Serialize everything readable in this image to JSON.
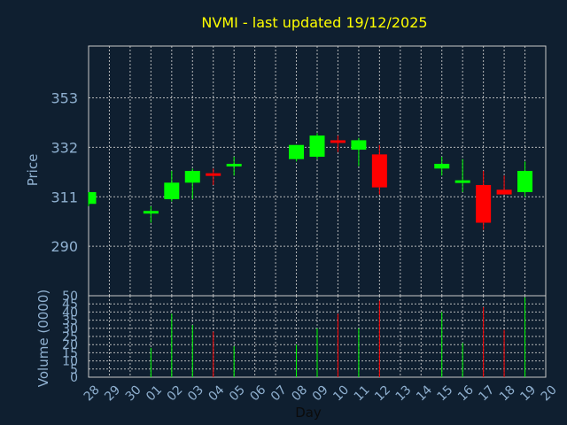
{
  "chart_data": {
    "type": "candlestick",
    "title": "NVMI - last updated 19/12/2025",
    "price_panel": {
      "ylabel": "Price",
      "yticks": [
        290,
        311,
        332,
        353
      ],
      "ylim": [
        269,
        375
      ]
    },
    "volume_panel": {
      "ylabel": "Volume (0000)",
      "yticks": [
        0,
        5,
        10,
        15,
        20,
        25,
        30,
        35,
        40,
        45,
        50
      ],
      "ylim": [
        0,
        50
      ]
    },
    "xlabel": "Day",
    "x_ticks": [
      "28",
      "29",
      "30",
      "01",
      "02",
      "03",
      "04",
      "05",
      "06",
      "07",
      "08",
      "09",
      "10",
      "11",
      "12",
      "13",
      "14",
      "15",
      "16",
      "17",
      "18",
      "19",
      "20"
    ],
    "candles": [
      {
        "day": "28",
        "open": 308,
        "high": 313,
        "low": 307,
        "close": 313,
        "volume": null
      },
      {
        "day": "01",
        "open": 304,
        "high": 307,
        "low": 300,
        "close": 305,
        "volume": 18
      },
      {
        "day": "02",
        "open": 310,
        "high": 322,
        "low": 309,
        "close": 317,
        "volume": 39
      },
      {
        "day": "03",
        "open": 317,
        "high": 323,
        "low": 310,
        "close": 322,
        "volume": 32
      },
      {
        "day": "04",
        "open": 321,
        "high": 323,
        "low": 316,
        "close": 320,
        "volume": 28
      },
      {
        "day": "05",
        "open": 324,
        "high": 328,
        "low": 320,
        "close": 325,
        "volume": 19
      },
      {
        "day": "08",
        "open": 327,
        "high": 333,
        "low": 326,
        "close": 333,
        "volume": 20
      },
      {
        "day": "09",
        "open": 328,
        "high": 338,
        "low": 327,
        "close": 337,
        "volume": 30
      },
      {
        "day": "10",
        "open": 335,
        "high": 337,
        "low": 330,
        "close": 334,
        "volume": 39
      },
      {
        "day": "11",
        "open": 331,
        "high": 336,
        "low": 324,
        "close": 335,
        "volume": 30
      },
      {
        "day": "12",
        "open": 329,
        "high": 333,
        "low": 312,
        "close": 315,
        "volume": 47
      },
      {
        "day": "15",
        "open": 323,
        "high": 328,
        "low": 320,
        "close": 325,
        "volume": 40
      },
      {
        "day": "16",
        "open": 318,
        "high": 327,
        "low": 313,
        "close": 318,
        "volume": 21
      },
      {
        "day": "17",
        "open": 316,
        "high": 322,
        "low": 297,
        "close": 300,
        "volume": 43
      },
      {
        "day": "18",
        "open": 314,
        "high": 320,
        "low": 312,
        "close": 312,
        "volume": 29
      },
      {
        "day": "19",
        "open": 313,
        "high": 326,
        "low": 311,
        "close": 322,
        "volume": 49
      }
    ],
    "colors": {
      "background": "#0f1f30",
      "up": "#00ff00",
      "down": "#ff0000",
      "grid": "#c8c8c8",
      "title": "#ffff00",
      "axis_text": "#8fb0d0"
    },
    "grid": true
  }
}
